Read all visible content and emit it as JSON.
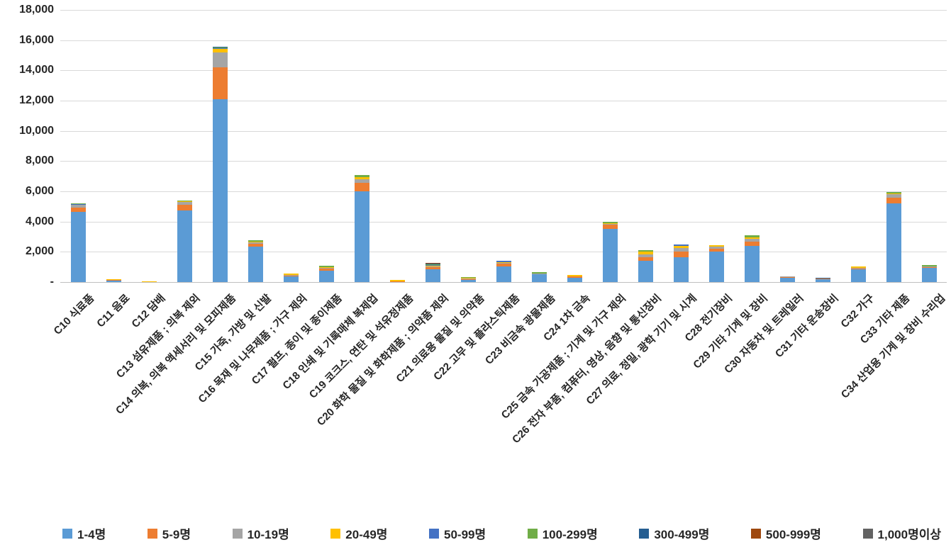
{
  "chart_data": {
    "type": "bar",
    "stacked": true,
    "title": "",
    "xlabel": "",
    "ylabel": "",
    "ylim": [
      0,
      18000
    ],
    "ytick_interval": 2000,
    "ytick_labels": [
      "-",
      "2,000",
      "4,000",
      "6,000",
      "8,000",
      "10,000",
      "12,000",
      "14,000",
      "16,000",
      "18,000"
    ],
    "grid": true,
    "legend_position": "bottom",
    "categories": [
      "C10 식료품",
      "C11 음료",
      "C12 담배",
      "C13 섬유제품 ; 의복 제외",
      "C14 의복, 의복 액세서리 및 모피제품",
      "C15 가죽, 가방 및 신발",
      "C16 목재 및 나무제품 ; 가구 제외",
      "C17 펄프, 종이 및 종이제품",
      "C18 인쇄 및 기록매체 복제업",
      "C19 코크스, 연탄 및 석유정제품",
      "C20 화학 물질 및 화학제품 ; 의약품 제외",
      "C21 의료용 물질 및 의약품",
      "C22 고무 및 플라스틱제품",
      "C23 비금속 광물제품",
      "C24 1차 금속",
      "C25 금속 가공제품 ; 기계 및 가구 제외",
      "C26 전자 부품, 컴퓨터, 영상, 음향 및 통신장비",
      "C27 의료, 정밀, 광학 기기 및 시계",
      "C28 전기장비",
      "C29 기타 기계 및 장비",
      "C30 자동차 및 트레일러",
      "C31 기타 운송장비",
      "C32 가구",
      "C33 기타 제품",
      "C34 산업용 기계 및 장비 수리업"
    ],
    "series": [
      {
        "name": "1-4명",
        "color": "#5B9BD5",
        "values": [
          4650,
          90,
          10,
          4750,
          12100,
          2350,
          400,
          760,
          6000,
          30,
          860,
          160,
          1020,
          510,
          280,
          3500,
          1430,
          1650,
          2000,
          2400,
          300,
          220,
          850,
          5200,
          950
        ]
      },
      {
        "name": "5-9명",
        "color": "#ED7D31",
        "values": [
          280,
          40,
          0,
          375,
          2100,
          200,
          40,
          130,
          550,
          20,
          120,
          50,
          200,
          40,
          80,
          280,
          220,
          370,
          190,
          290,
          50,
          30,
          60,
          390,
          40
        ]
      },
      {
        "name": "10-19명",
        "color": "#A5A5A5",
        "values": [
          170,
          50,
          0,
          190,
          1000,
          110,
          20,
          40,
          270,
          0,
          40,
          30,
          60,
          20,
          0,
          100,
          190,
          230,
          140,
          190,
          30,
          0,
          40,
          200,
          50
        ]
      },
      {
        "name": "20-49명",
        "color": "#FFC000",
        "values": [
          40,
          30,
          60,
          30,
          200,
          30,
          90,
          70,
          120,
          80,
          80,
          20,
          40,
          0,
          90,
          20,
          160,
          140,
          100,
          95,
          0,
          0,
          90,
          60,
          0
        ]
      },
      {
        "name": "50-99명",
        "color": "#4472C4",
        "values": [
          20,
          0,
          0,
          0,
          50,
          0,
          0,
          0,
          0,
          0,
          30,
          0,
          80,
          0,
          0,
          0,
          0,
          110,
          0,
          0,
          0,
          0,
          0,
          0,
          0
        ]
      },
      {
        "name": "100-299명",
        "color": "#70AD47",
        "values": [
          30,
          0,
          0,
          70,
          50,
          70,
          0,
          70,
          120,
          0,
          70,
          90,
          0,
          70,
          0,
          100,
          95,
          0,
          0,
          140,
          0,
          0,
          0,
          100,
          80
        ]
      },
      {
        "name": "300-499명",
        "color": "#255E91",
        "values": [
          0,
          0,
          0,
          0,
          50,
          0,
          0,
          0,
          0,
          0,
          20,
          0,
          0,
          0,
          0,
          0,
          0,
          0,
          0,
          0,
          0,
          50,
          0,
          0,
          0
        ]
      },
      {
        "name": "500-999명",
        "color": "#9E480E",
        "values": [
          0,
          0,
          0,
          0,
          0,
          0,
          0,
          0,
          0,
          0,
          40,
          0,
          0,
          0,
          0,
          0,
          0,
          0,
          0,
          0,
          0,
          0,
          0,
          0,
          0
        ]
      },
      {
        "name": "1,000명이상",
        "color": "#636363",
        "values": [
          0,
          0,
          0,
          0,
          0,
          0,
          0,
          0,
          0,
          0,
          0,
          0,
          0,
          0,
          0,
          0,
          0,
          0,
          0,
          0,
          0,
          0,
          0,
          0,
          0
        ]
      }
    ]
  },
  "layout_colors": {
    "gridline": "#d9d9d9",
    "axis_line": "#bfbfbf",
    "text": "#262626",
    "background": "#ffffff"
  }
}
